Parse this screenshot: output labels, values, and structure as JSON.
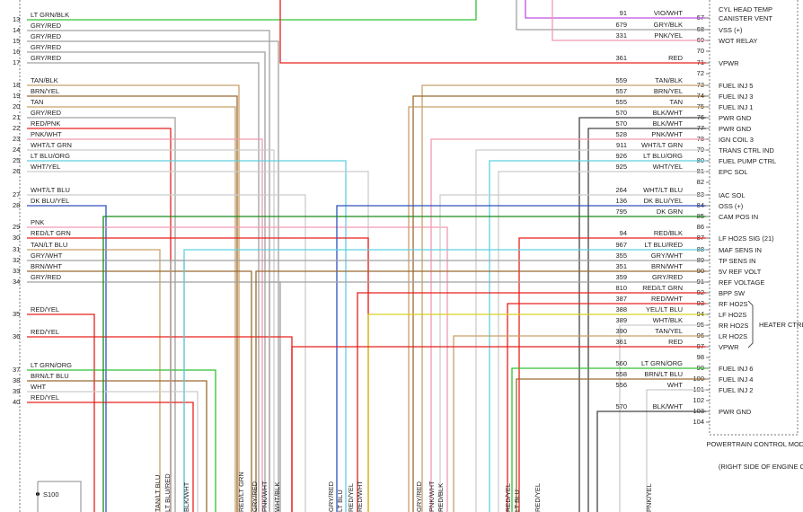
{
  "header": {
    "module": "POWERTRAIN CONTROL MODULE (PCM)",
    "location": "(RIGHT SIDE OF ENGINE COMPT)",
    "group_label": "HEATER CTRL",
    "splice": "S100",
    "top_function": "CYL HEAD TEMP"
  },
  "left_pins": [
    {
      "pin": "13",
      "wire": "LT GRN/BLK"
    },
    {
      "pin": "14",
      "wire": "GRY/RED"
    },
    {
      "pin": "15",
      "wire": "GRY/RED"
    },
    {
      "pin": "16",
      "wire": "GRY/RED"
    },
    {
      "pin": "17",
      "wire": "GRY/RED"
    },
    {
      "pin": "18",
      "wire": "TAN/BLK"
    },
    {
      "pin": "19",
      "wire": "BRN/YEL"
    },
    {
      "pin": "20",
      "wire": "TAN"
    },
    {
      "pin": "21",
      "wire": "GRY/RED"
    },
    {
      "pin": "22",
      "wire": "RED/PNK"
    },
    {
      "pin": "23",
      "wire": "PNK/WHT"
    },
    {
      "pin": "24",
      "wire": "WHT/LT GRN"
    },
    {
      "pin": "25",
      "wire": "LT BLU/ORG"
    },
    {
      "pin": "26",
      "wire": "WHT/YEL"
    },
    {
      "pin": "27",
      "wire": "WHT/LT BLU"
    },
    {
      "pin": "28",
      "wire": "DK BLU/YEL"
    },
    {
      "pin": "29",
      "wire": "PNK"
    },
    {
      "pin": "30",
      "wire": "RED/LT GRN"
    },
    {
      "pin": "31",
      "wire": "TAN/LT BLU"
    },
    {
      "pin": "32",
      "wire": "GRY/WHT"
    },
    {
      "pin": "33",
      "wire": "BRN/WHT"
    },
    {
      "pin": "34",
      "wire": "GRY/RED"
    },
    {
      "pin": "35",
      "wire": "RED/YEL"
    },
    {
      "pin": "36",
      "wire": "RED/YEL"
    },
    {
      "pin": "37",
      "wire": "LT GRN/ORG"
    },
    {
      "pin": "38",
      "wire": "BRN/LT BLU"
    },
    {
      "pin": "39",
      "wire": "WHT"
    },
    {
      "pin": "40",
      "wire": "RED/YEL"
    }
  ],
  "right_pins": [
    {
      "pin": "67",
      "circuit": "91",
      "wire": "VIO/WHT",
      "function": "CANISTER VENT"
    },
    {
      "pin": "68",
      "circuit": "679",
      "wire": "GRY/BLK",
      "function": "VSS (+)"
    },
    {
      "pin": "69",
      "circuit": "331",
      "wire": "PNK/YEL",
      "function": "WOT RELAY"
    },
    {
      "pin": "70"
    },
    {
      "pin": "71",
      "circuit": "361",
      "wire": "RED",
      "function": "VPWR"
    },
    {
      "pin": "72"
    },
    {
      "pin": "73",
      "circuit": "559",
      "wire": "TAN/BLK",
      "function": "FUEL INJ 5"
    },
    {
      "pin": "74",
      "circuit": "557",
      "wire": "BRN/YEL",
      "function": "FUEL INJ 3"
    },
    {
      "pin": "75",
      "circuit": "555",
      "wire": "TAN",
      "function": "FUEL INJ 1"
    },
    {
      "pin": "76",
      "circuit": "570",
      "wire": "BLK/WHT",
      "function": "PWR GND"
    },
    {
      "pin": "77",
      "circuit": "570",
      "wire": "BLK/WHT",
      "function": "PWR GND"
    },
    {
      "pin": "78",
      "circuit": "528",
      "wire": "PNK/WHT",
      "function": "IGN COIL 3"
    },
    {
      "pin": "79",
      "circuit": "911",
      "wire": "WHT/LT GRN",
      "function": "TRANS CTRL IND"
    },
    {
      "pin": "80",
      "circuit": "926",
      "wire": "LT BLU/ORG",
      "function": "FUEL PUMP CTRL"
    },
    {
      "pin": "81",
      "circuit": "925",
      "wire": "WHT/YEL",
      "function": "EPC SOL"
    },
    {
      "pin": "82"
    },
    {
      "pin": "83",
      "circuit": "264",
      "wire": "WHT/LT BLU",
      "function": "IAC SOL"
    },
    {
      "pin": "84",
      "circuit": "136",
      "wire": "DK BLU/YEL",
      "function": "OSS (+)"
    },
    {
      "pin": "85",
      "circuit": "795",
      "wire": "DK GRN",
      "function": "CAM POS IN"
    },
    {
      "pin": "86"
    },
    {
      "pin": "87",
      "circuit": "94",
      "wire": "RED/BLK",
      "function": "LF HO2S SIG (21)"
    },
    {
      "pin": "88",
      "circuit": "967",
      "wire": "LT BLU/RED",
      "function": "MAF SENS IN"
    },
    {
      "pin": "89",
      "circuit": "355",
      "wire": "GRY/WHT",
      "function": "TP SENS IN"
    },
    {
      "pin": "90",
      "circuit": "351",
      "wire": "BRN/WHT",
      "function": "5V REF VOLT"
    },
    {
      "pin": "91",
      "circuit": "359",
      "wire": "GRY/RED",
      "function": "REF VOLTAGE"
    },
    {
      "pin": "92",
      "circuit": "810",
      "wire": "RED/LT GRN",
      "function": "BPP SW"
    },
    {
      "pin": "93",
      "circuit": "387",
      "wire": "RED/WHT",
      "function": "RF HO2S"
    },
    {
      "pin": "94",
      "circuit": "388",
      "wire": "YEL/LT BLU",
      "function": "LF HO2S"
    },
    {
      "pin": "95",
      "circuit": "389",
      "wire": "WHT/BLK",
      "function": "RR HO2S"
    },
    {
      "pin": "96",
      "circuit": "390",
      "wire": "TAN/YEL",
      "function": "LR HO2S"
    },
    {
      "pin": "97",
      "circuit": "361",
      "wire": "RED",
      "function": "VPWR"
    },
    {
      "pin": "98"
    },
    {
      "pin": "99",
      "circuit": "560",
      "wire": "LT GRN/ORG",
      "function": "FUEL INJ 6"
    },
    {
      "pin": "100",
      "circuit": "558",
      "wire": "BRN/LT BLU",
      "function": "FUEL INJ 4"
    },
    {
      "pin": "101",
      "circuit": "556",
      "wire": "WHT",
      "function": "FUEL INJ 2"
    },
    {
      "pin": "102"
    },
    {
      "pin": "103",
      "circuit": "570",
      "wire": "BLK/WHT",
      "function": "PWR GND"
    },
    {
      "pin": "104"
    }
  ],
  "bottom_labels": [
    "TAN/LT BLU",
    "LT BLU/RED",
    "BLK/WHT",
    "RED/LT GRN",
    "GRY/RED",
    "PNK/WHT",
    "WHT/BLK",
    "GRY/RED",
    "LT BLU",
    "RED/YEL",
    "RED/WHT",
    "GRY/RED",
    "PNK/WHT",
    "RED/BLK",
    "RED/YEL",
    "LT BLU",
    "RED/YEL",
    "PNK/YEL"
  ]
}
